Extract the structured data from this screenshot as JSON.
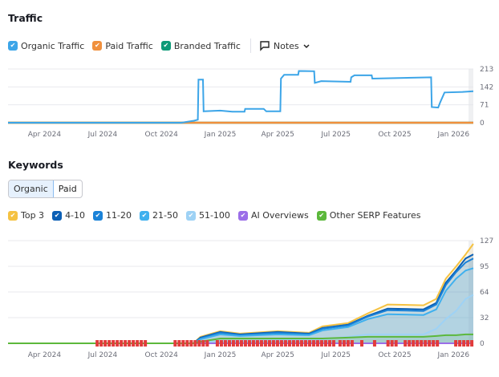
{
  "traffic": {
    "title": "Traffic",
    "legend": [
      {
        "label": "Organic Traffic",
        "color": "#3ca5e8",
        "checked": true
      },
      {
        "label": "Paid Traffic",
        "color": "#f0903d",
        "checked": true
      },
      {
        "label": "Branded Traffic",
        "color": "#0e9a78",
        "checked": true
      }
    ],
    "notes_label": "Notes",
    "icons": {
      "notes": "comment-icon",
      "dropdown": "chevron-down-icon"
    }
  },
  "keywords": {
    "title": "Keywords",
    "tabs": [
      {
        "label": "Organic",
        "active": true
      },
      {
        "label": "Paid",
        "active": false
      }
    ],
    "legend": [
      {
        "label": "Top 3",
        "color": "#f5c242"
      },
      {
        "label": "4-10",
        "color": "#0b5fb5"
      },
      {
        "label": "11-20",
        "color": "#1a82d8"
      },
      {
        "label": "21-50",
        "color": "#3fb0ee"
      },
      {
        "label": "51-100",
        "color": "#9ed2f5"
      },
      {
        "label": "AI Overviews",
        "color": "#9b6ee8"
      },
      {
        "label": "Other SERP Features",
        "color": "#5cb83c"
      }
    ]
  },
  "chart_data": [
    {
      "type": "line",
      "x_ticks": [
        "Apr 2024",
        "Jul 2024",
        "Oct 2024",
        "Jan 2025",
        "Apr 2025",
        "Jul 2025",
        "Oct 2025",
        "Jan 2026"
      ],
      "x_tick_dates": [
        "2024-04-01",
        "2024-07-01",
        "2024-10-01",
        "2025-01-01",
        "2025-04-01",
        "2025-07-01",
        "2025-10-01",
        "2026-01-01"
      ],
      "xlim": [
        "2024-02-04",
        "2026-02-01"
      ],
      "y_ticks": [
        "213",
        "142",
        "71",
        "0"
      ],
      "ylim": [
        0,
        213
      ],
      "grid": true,
      "series": [
        {
          "name": "Organic Traffic",
          "color": "#3ca5e8",
          "points": [
            [
              "2024-02-04",
              0
            ],
            [
              "2024-11-01",
              0
            ],
            [
              "2024-11-21",
              8
            ],
            [
              "2024-11-27",
              12
            ],
            [
              "2024-11-28",
              171
            ],
            [
              "2024-12-05",
              171
            ],
            [
              "2024-12-06",
              45
            ],
            [
              "2025-01-01",
              48
            ],
            [
              "2025-01-20",
              44
            ],
            [
              "2025-02-08",
              44
            ],
            [
              "2025-02-09",
              55
            ],
            [
              "2025-03-10",
              55
            ],
            [
              "2025-03-14",
              45
            ],
            [
              "2025-04-05",
              45
            ],
            [
              "2025-04-06",
              175
            ],
            [
              "2025-04-11",
              190
            ],
            [
              "2025-05-03",
              190
            ],
            [
              "2025-05-04",
              205
            ],
            [
              "2025-05-28",
              204
            ],
            [
              "2025-05-29",
              158
            ],
            [
              "2025-06-08",
              165
            ],
            [
              "2025-07-24",
              162
            ],
            [
              "2025-07-25",
              180
            ],
            [
              "2025-07-30",
              188
            ],
            [
              "2025-08-26",
              188
            ],
            [
              "2025-08-27",
              175
            ],
            [
              "2025-11-27",
              180
            ],
            [
              "2025-11-28",
              62
            ],
            [
              "2025-12-08",
              60
            ],
            [
              "2025-12-11",
              80
            ],
            [
              "2025-12-18",
              120
            ],
            [
              "2026-01-15",
              122
            ],
            [
              "2026-02-01",
              125
            ]
          ]
        },
        {
          "name": "Paid Traffic",
          "color": "#f0903d",
          "points": [
            [
              "2024-02-04",
              0
            ],
            [
              "2026-02-01",
              0
            ]
          ]
        },
        {
          "name": "Branded Traffic",
          "color": "#0e9a78",
          "points": [
            [
              "2024-02-04",
              0
            ],
            [
              "2026-02-01",
              0
            ]
          ]
        }
      ]
    },
    {
      "type": "area",
      "x_ticks": [
        "Apr 2024",
        "Jul 2024",
        "Oct 2024",
        "Jan 2025",
        "Apr 2025",
        "Jul 2025",
        "Oct 2025",
        "Jan 2026"
      ],
      "x_tick_dates": [
        "2024-04-01",
        "2024-07-01",
        "2024-10-01",
        "2025-01-01",
        "2025-04-01",
        "2025-07-01",
        "2025-10-01",
        "2026-01-01"
      ],
      "xlim": [
        "2024-02-04",
        "2026-02-01"
      ],
      "y_ticks": [
        "127",
        "95",
        "64",
        "32",
        "0"
      ],
      "ylim": [
        0,
        127
      ],
      "grid": true,
      "x": [
        "2024-02-04",
        "2024-11-20",
        "2024-12-01",
        "2025-01-01",
        "2025-02-01",
        "2025-04-01",
        "2025-05-20",
        "2025-06-10",
        "2025-07-20",
        "2025-08-20",
        "2025-09-20",
        "2025-11-15",
        "2025-12-05",
        "2025-12-20",
        "2026-01-05",
        "2026-01-20",
        "2026-02-01"
      ],
      "series": [
        {
          "name": "Other SERP Features",
          "color": "#5cb83c",
          "values": [
            0,
            0,
            2,
            6,
            6,
            6,
            6,
            6,
            7,
            8,
            8,
            8,
            9,
            10,
            10,
            11,
            11
          ]
        },
        {
          "name": "AI Overviews",
          "color": "#9b6ee8",
          "values": [
            0,
            0,
            0,
            0,
            0,
            0,
            0,
            0,
            0,
            0,
            0,
            0,
            0,
            0,
            0,
            0,
            0
          ]
        },
        {
          "name": "51-100",
          "color": "#9ed2f5",
          "values": [
            0,
            0,
            1,
            3,
            3,
            4,
            4,
            5,
            8,
            11,
            11,
            11,
            18,
            30,
            40,
            55,
            60
          ]
        },
        {
          "name": "21-50",
          "color": "#3fb0ee",
          "values": [
            0,
            0,
            5,
            11,
            9,
            11,
            10,
            16,
            20,
            30,
            36,
            35,
            42,
            65,
            80,
            90,
            93
          ]
        },
        {
          "name": "11-20",
          "color": "#1a82d8",
          "values": [
            0,
            0,
            6,
            13,
            10,
            13,
            11,
            18,
            22,
            33,
            41,
            40,
            48,
            72,
            88,
            100,
            105
          ]
        },
        {
          "name": "4-10",
          "color": "#0b5fb5",
          "values": [
            0,
            0,
            7,
            14,
            11,
            14,
            12,
            19,
            23,
            34,
            43,
            42,
            50,
            75,
            90,
            105,
            110
          ]
        },
        {
          "name": "Top 3",
          "color": "#f5c242",
          "values": [
            0,
            0,
            8,
            15,
            12,
            15,
            13,
            21,
            25,
            37,
            48,
            47,
            55,
            80,
            95,
            110,
            123
          ]
        }
      ],
      "note_marker_ranges": [
        [
          "2024-06-20",
          "2024-09-05"
        ],
        [
          "2024-10-20",
          "2024-12-12"
        ],
        [
          "2024-12-25",
          "2025-06-28"
        ],
        [
          "2025-07-05",
          "2025-07-25"
        ],
        [
          "2025-08-08",
          "2025-08-14"
        ],
        [
          "2025-08-28",
          "2025-09-03"
        ],
        [
          "2025-09-18",
          "2025-10-05"
        ],
        [
          "2025-10-15",
          "2025-12-10"
        ],
        [
          "2026-01-02",
          "2026-01-30"
        ]
      ],
      "note_marker_color": "#e23b3b"
    }
  ]
}
